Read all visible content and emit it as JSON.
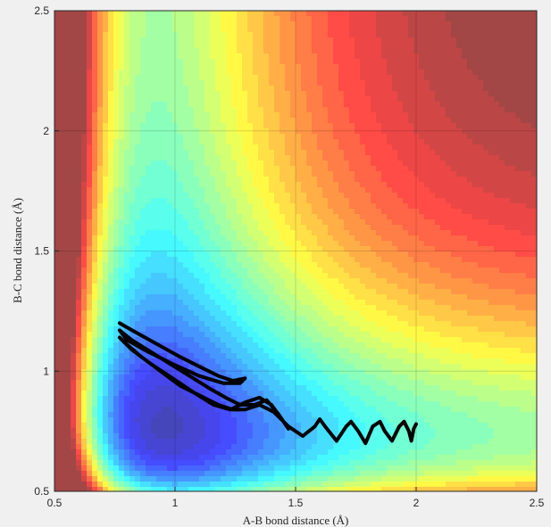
{
  "chart_data": {
    "type": "contour",
    "title": "",
    "xlabel": "A-B bond distance (Å)",
    "ylabel": "B-C bond distance (Å)",
    "xlim": [
      0.5,
      2.5
    ],
    "ylim": [
      0.5,
      2.5
    ],
    "xticks": [
      0.5,
      1,
      1.5,
      2,
      2.5
    ],
    "xtick_labels": [
      "0.5",
      "1",
      "1.5",
      "2",
      "2.5"
    ],
    "yticks": [
      0.5,
      1,
      1.5,
      2,
      2.5
    ],
    "ytick_labels": [
      "0.5",
      "1",
      "1.5",
      "2",
      "2.5"
    ],
    "grid": true,
    "colormap": "jet",
    "potential_well": {
      "exit_channel_min_bc": 0.74,
      "entrance_channel_min_ab": 0.93,
      "saddle_ab": 0.93,
      "saddle_bc": 0.93
    },
    "trajectory": {
      "color": "#000000",
      "start": [
        0.77,
        1.2
      ],
      "end": [
        2.0,
        0.78
      ],
      "points": [
        [
          0.77,
          1.2
        ],
        [
          0.84,
          1.16
        ],
        [
          0.93,
          1.11
        ],
        [
          1.02,
          1.06
        ],
        [
          1.1,
          1.02
        ],
        [
          1.18,
          0.98
        ],
        [
          1.24,
          0.96
        ],
        [
          1.29,
          0.97
        ],
        [
          1.27,
          0.95
        ],
        [
          1.2,
          0.95
        ],
        [
          1.1,
          0.98
        ],
        [
          0.99,
          1.03
        ],
        [
          0.89,
          1.08
        ],
        [
          0.8,
          1.13
        ],
        [
          0.77,
          1.17
        ],
        [
          0.82,
          1.13
        ],
        [
          0.9,
          1.08
        ],
        [
          0.98,
          1.03
        ],
        [
          1.06,
          0.98
        ],
        [
          1.14,
          0.93
        ],
        [
          1.21,
          0.89
        ],
        [
          1.27,
          0.86
        ],
        [
          1.33,
          0.86
        ],
        [
          1.38,
          0.88
        ],
        [
          1.43,
          0.82
        ],
        [
          1.47,
          0.76
        ],
        [
          1.45,
          0.79
        ],
        [
          1.4,
          0.86
        ],
        [
          1.35,
          0.89
        ],
        [
          1.29,
          0.87
        ],
        [
          1.23,
          0.84
        ],
        [
          1.16,
          0.86
        ],
        [
          1.08,
          0.91
        ],
        [
          0.99,
          0.97
        ],
        [
          0.9,
          1.03
        ],
        [
          0.82,
          1.09
        ],
        [
          0.77,
          1.14
        ],
        [
          0.79,
          1.12
        ],
        [
          0.86,
          1.06
        ],
        [
          0.94,
          1.0
        ],
        [
          1.02,
          0.94
        ],
        [
          1.1,
          0.9
        ],
        [
          1.18,
          0.86
        ],
        [
          1.24,
          0.84
        ],
        [
          1.29,
          0.84
        ],
        [
          1.35,
          0.86
        ],
        [
          1.41,
          0.83
        ],
        [
          1.47,
          0.77
        ],
        [
          1.53,
          0.73
        ],
        [
          1.58,
          0.77
        ],
        [
          1.6,
          0.8
        ],
        [
          1.63,
          0.76
        ],
        [
          1.67,
          0.71
        ],
        [
          1.71,
          0.77
        ],
        [
          1.73,
          0.79
        ],
        [
          1.76,
          0.75
        ],
        [
          1.79,
          0.7
        ],
        [
          1.82,
          0.77
        ],
        [
          1.85,
          0.79
        ],
        [
          1.87,
          0.75
        ],
        [
          1.9,
          0.71
        ],
        [
          1.93,
          0.77
        ],
        [
          1.95,
          0.79
        ],
        [
          1.97,
          0.75
        ],
        [
          1.98,
          0.71
        ],
        [
          1.99,
          0.76
        ],
        [
          2.0,
          0.78
        ]
      ]
    }
  }
}
